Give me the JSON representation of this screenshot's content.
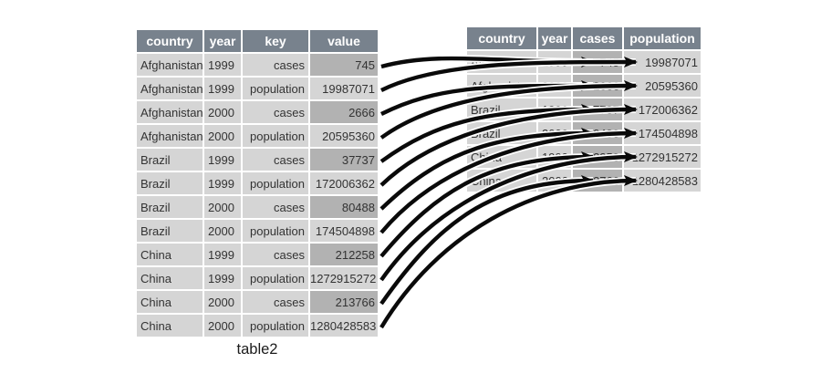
{
  "caption": "table2",
  "colors": {
    "canvas_bg": "#ffffff",
    "header_bg": "#78828d",
    "header_text": "#ffffff",
    "row_bg": "#d5d5d5",
    "highlight_bg": "#b2b2b2",
    "body_text": "#333333",
    "arrow": "#0a0a0a"
  },
  "left_table": {
    "columns": [
      "country",
      "year",
      "key",
      "value"
    ],
    "rows": [
      {
        "country": "Afghanistan",
        "year": "1999",
        "key": "cases",
        "value": "745"
      },
      {
        "country": "Afghanistan",
        "year": "1999",
        "key": "population",
        "value": "19987071"
      },
      {
        "country": "Afghanistan",
        "year": "2000",
        "key": "cases",
        "value": "2666"
      },
      {
        "country": "Afghanistan",
        "year": "2000",
        "key": "population",
        "value": "20595360"
      },
      {
        "country": "Brazil",
        "year": "1999",
        "key": "cases",
        "value": "37737"
      },
      {
        "country": "Brazil",
        "year": "1999",
        "key": "population",
        "value": "172006362"
      },
      {
        "country": "Brazil",
        "year": "2000",
        "key": "cases",
        "value": "80488"
      },
      {
        "country": "Brazil",
        "year": "2000",
        "key": "population",
        "value": "174504898"
      },
      {
        "country": "China",
        "year": "1999",
        "key": "cases",
        "value": "212258"
      },
      {
        "country": "China",
        "year": "1999",
        "key": "population",
        "value": "1272915272"
      },
      {
        "country": "China",
        "year": "2000",
        "key": "cases",
        "value": "213766"
      },
      {
        "country": "China",
        "year": "2000",
        "key": "population",
        "value": "1280428583"
      }
    ]
  },
  "right_table": {
    "columns": [
      "country",
      "year",
      "cases",
      "population"
    ],
    "rows": [
      {
        "country": "Afghanistan",
        "year": "1999",
        "cases": "745",
        "population": "19987071"
      },
      {
        "country": "Afghanistan",
        "year": "2000",
        "cases": "2666",
        "population": "20595360"
      },
      {
        "country": "Brazil",
        "year": "1999",
        "cases": "37737",
        "population": "172006362"
      },
      {
        "country": "Brazil",
        "year": "2000",
        "cases": "80488",
        "population": "174504898"
      },
      {
        "country": "China",
        "year": "1999",
        "cases": "212258",
        "population": "1272915272"
      },
      {
        "country": "China",
        "year": "2000",
        "cases": "213766",
        "population": "1280428583"
      }
    ]
  }
}
